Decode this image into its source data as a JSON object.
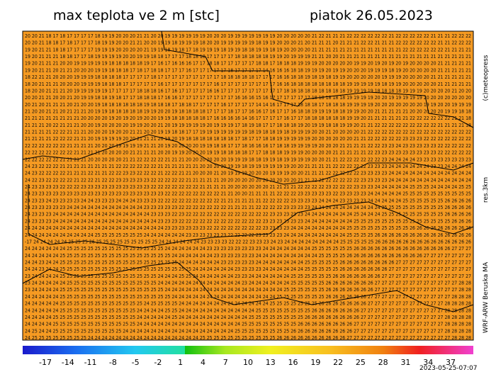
{
  "header": {
    "title": "max teplota ve 2 m [stc]",
    "date": "piatok 26.05.2023"
  },
  "side": {
    "copyright": "(c)meteopress",
    "resolution": "res.3km",
    "model": "WRF-ARW Beruska MA"
  },
  "footer": {
    "timestamp": "2023-05-25-07:07"
  },
  "colorbar": {
    "labels": [
      "-17",
      "-14",
      "-11",
      "-8",
      "-5",
      "-2",
      "1",
      "4",
      "7",
      "10",
      "13",
      "16",
      "19",
      "22",
      "25",
      "28",
      "31",
      "34",
      "37"
    ]
  },
  "grid": {
    "rows": [
      "20 20 21 18 17 18 17 17 17 17 18 19 19 20 20 20 21 21 20 20 19 19 19 19 19 19 20 20 20 19 19 19 19 19 19 19 20 20 20 20 20 21 22 21 21 21 22 22 22 22 22 22 21 22 22 22 22 22 21 21 21 22 22 22",
      "20 20 21 18 18 17 18 17 17 17 18 19 19 20 20 21 21 20 20 19 19 18 19 19 19 18 20 20 19 19 19 19 19 18 19 19 20 20 20 21 20 21 21 21 20 21 21 21 22 22 21 21 21 22 22 22 22 22 22 21 21 22 22 22",
      "19 20 21 21 18 18 17 17 17 17 19 19 19 20 20 20 20 21 19 19 18 19 18 17 18 19 19 19 18 19 19 18 18 19 19 18 19 20 20 20 20 21 21 21 21 21 21 21 21 21 21 21 21 21 22 22 22 22 22 22 21 21 21 21",
      "19 20 21 21 21 18 18 17 17 18 19 19 19 19 20 20 19 19 18 18 17 17 17 18 18 18 17 17 17 17 18 18 18 18 18 19 19 20 19 19 19 21 21 20 20 21 21 21 21 21 21 21 21 21 21 21 21 21 21 21 21 21 21 21",
      "19 20 21 21 21 20 20 19 19 19 19 19 18 18 18 18 18 19 17 16 17 16 16 16 17 17 18 18 17 17 17 17 17 18 18 17 18 18 18 19 19 19 20 20 20 20 20 19 19 20 19 20 19 20 19 20 20 20 20 21 21 21 21 21",
      "19 20 21 21 20 21 21 20 20 20 19 19 18 18 18 17 18 17 18 18 17 17 17 16 17 17 17 17 17 18 17 17 17 17 14 16 16 16 18 18 19 19 19 20 19 19 20 20 20 19 19 19 18 19 20 20 20 20 20 21 21 21 21 21",
      "18 22 21 21 20 20 20 19 19 19 18 18 18 18 17 17 17 17 18 17 17 17 17 17 17 17 17 17 18 18 18 18 18 17 17 17 16 16 18 18 19 18 19 18 19 19 20 20 20 20 20 19 19 19 20 20 20 20 21 21 21 21 21 21",
      "18 20 21 21 21 20 20 20 19 19 19 18 18 18 17 17 17 17 17 16 17 17 17 17 17 17 17 16 17 17 17 17 17 17 17 17 16 16 18 18 18 18 18 18 18 18 19 19 19 19 19 18 19 19 20 20 20 20 20 21 21 21 21 21",
      "18 20 20 21 21 21 20 19 19 19 19 19 17 17 17 17 18 18 18 16 17 16 17 17 17 17 16 16 17 17 17 17 17 17 17 17 17 18 18 18 18 18 18 18 18 18 19 19 19 19 18 18 18 18 19 19 19 20 20 20 20 21 20 20",
      "20 20 21 21 20 20 21 20 19 19 18 18 19 18 17 17 18 18 18 17 16 16 17 17 17 17 17 17 17 17 16 16 16 15 16 17 17 17 17 17 17 18 18 18 18 18 19 19 19 19 20 20 19 19 19 19 19 20 20 20 20 20 20 20",
      "20 21 20 21 21 21 20 21 20 20 19 18 18 18 18 18 18 19 18 18 18 17 18 18 17 17 17 17 16 17 17 17 17 14 14 16 17 17 17 18 18 18 17 18 18 18 19 19 19 19 20 20 20 20 20 20 20 19 19 20 20 19 19 19",
      "21 20 20 21 21 20 21 21 21 20 19 19 18 18 18 18 18 19 19 20 20 19 18 18 18 18 17 17 17 18 17 17 16 16 17 16 17 17 16 18 18 19 19 19 18 18 19 19 20 20 21 21 21 21 21 20 20 20 20 20 19 19 18 18",
      "21 21 21 21 21 21 21 21 20 20 20 20 19 20 19 20 19 20 20 19 19 18 18 18 18 18 17 16 16 16 16 14 16 17 17 17 17 16 17 17 18 18 18 18 18 18 19 19 20 21 21 21 21 21 21 22 22 22 22 22 22 21 21 18",
      "21 21 21 20 22 21 21 21 20 20 19 20 20 20 20 19 19 20 20 21 20 19 19 19 19 19 20 19 19 19 17 18 19 18 17 17 18 18 18 19 20 19 19 18 18 19 19 20 21 21 22 22 22 22 22 22 22 22 22 21 21 21 21 18",
      "21 21 21 21 22 22 21 21 21 20 20 20 19 20 20 21 21 20 20 19 19 18 18 17 17 19 19 19 19 19 19 19 18 19 18 18 19 18 19 19 19 20 20 21 20 20 20 20 21 22 22 22 22 22 22 22 22 22 22 22 22 22 22 22",
      "21 21 21 21 22 22 22 21 21 20 19 19 19 19 20 20 21 21 21 20 19 20 19 18 18 18 18 18 18 18 17 18 17 17 18 18 19 19 19 19 19 20 20 20 20 20 20 21 21 22 22 22 22 22 23 23 23 22 22 22 22 22 22 22",
      "22 22 22 22 22 22 21 21 21 21 20 20 20 19 19 19 19 21 21 20 19 20 20 20 20 19 19 18 18 17 17 18 16 16 16 17 18 18 19 19 19 19 20 20 20 21 21 21 21 22 22 23 23 24 23 23 23 23 23 22 22 22 22 22",
      "22 22 22 22 22 22 22 21 21 21 21 20 20 20 20 21 21 21 21 20 20 19 19 20 20 20 19 19 18 18 18 18 17 17 18 18 18 19 19 19 20 20 20 20 21 21 21 21 21 22 23 23 23 23 23 23 23 23 23 22 22 22 22 22",
      "22 22 22 22 22 21 21 21 21 20 20 20 20 20 21 21 22 22 22 22 21 21 21 20 20 20 20 20 20 19 19 19 18 18 19 19 18 19 19 19 19 20 20 21 21 22 22 22 22 22 22 23 24 24 24 24 23 23 23 23 23 23 23 23",
      "24 23 22 22 22 21 21 21 21 21 21 21 21 22 22 22 22 22 22 21 21 21 21 21 21 20 20 20 20 19 19 18 19 19 19 19 19 19 20 20 21 21 21 21 22 22 22 22 22 23 23 23 24 24 24 24 24 24 23 23 24 24 24 24",
      "24 23 22 22 22 22 21 21 21 22 21 21 22 22 23 23 22 22 22 21 22 22 21 21 20 20 20 21 20 19 19 19 20 20 20 19 19 19 20 20 21 21 21 22 22 22 22 22 23 23 23 23 24 24 24 24 24 24 24 24 24 24 24 24",
      "24 22 23 22 22 22 22 21 22 22 21 22 22 23 23 23 23 23 22 22 22 22 22 21 21 21 21 21 20 20 20 20 20 20 20 20 20 20 20 21 21 22 22 22 22 22 22 22 23 23 23 23 24 24 24 24 24 24 24 24 24 24 24 24",
      "24 23 23 23 23 22 22 22 23 23 23 23 23 23 23 23 23 23 22 22 22 22 22 22 22 21 21 21 21 20 20 20 20 20 20 21 21 21 21 22 22 22 22 23 22 22 22 23 23 23 24 24 24 24 24 25 25 25 24 24 24 24 25 25",
      "24 23 23 23 23 23 23 23 23 23 23 23 23 23 23 23 23 23 23 23 22 22 22 22 22 22 22 22 21 21 20 20 21 21 21 21 22 22 22 23 23 23 23 23 22 23 23 23 23 24 24 24 24 24 25 25 25 25 25 25 25 25 25 25",
      "24 23 23 24 23 23 23 23 24 24 23 23 23 24 24 24 23 23 23 22 22 22 22 22 22 22 22 22 21 21 21 21 21 21 22 22 22 22 23 23 23 23 24 24 24 23 23 23 23 24 24 24 24 24 25 25 25 25 25 25 26 26 26 26",
      "24 23 23 23 23 23 24 24 24 24 24 24 24 24 24 24 24 23 23 23 23 23 22 22 22 22 22 22 22 21 21 21 21 22 22 22 22 23 23 23 23 24 24 24 24 24 24 24 24 24 24 25 25 25 25 25 25 25 25 25 26 26 26 26",
      "24 23 23 23 24 24 24 24 24 24 24 24 24 24 24 24 24 24 23 23 23 22 23 22 22 22 22 22 22 22 22 22 22 22 22 23 23 23 23 23 24 24 24 24 24 24 24 25 24 24 24 25 25 25 25 25 25 25 25 25 26 26 26 26",
      "24 23 23 23 24 24 24 24 24 24 24 24 24 24 24 24 24 24 24 23 23 23 22 22 22 22 22 22 22 22 22 22 22 22 23 23 23 23 23 23 24 24 24 24 24 24 24 25 25 25 25 25 25 25 25 25 25 25 25 25 25 26 26 26",
      "24 24 24 24 24 24 24 24 24 24 24 24 24 24 24 24 24 24 24 24 23 23 23 23 23 23 22 22 22 22 22 22 22 22 23 23 23 23 24 24 24 24 24 24 24 24 25 25 25 25 25 25 25 25 25 26 26 26 26 26 26 26 26 26",
      "24 24 24 24 24 24 24 24 24 24 25 25 25 25 25 25 25 24 24 24 24 24 24 23 23 23 23 23 23 22 22 22 22 23 23 23 23 24 24 24 24 24 24 24 24 24 25 25 25 25 26 26 26 26 26 26 26 26 26 26 26 26 26 26",
      "-17 24 24 24 24 24 25 25 25 26 25 25 25 25 25 25 25 25 25 24 24 24 24 24 24 23 23 23 23 22 22 22 23 23 23 24 23 24 24 24 24 24 24 24 24 25 25 25 25 25 26 26 26 26 26 26 26 26 26 26 26 26 26 26",
      "24 24 24 24 24 24 25 25 25 25 25 25 25 25 25 25 25 25 25 25 24 24 24 24 24 24 23 23 23 23 23 23 23 23 24 24 24 24 24 24 24 25 25 25 25 25 25 26 26 26 26 26 26 26 26 26 26 26 26 26 26 27 27 27",
      "24 24 24 24 24 25 25 25 25 25 25 25 25 25 25 25 25 25 25 25 25 24 24 24 24 24 24 23 23 23 23 23 23 24 24 24 24 24 24 24 24 24 25 25 25 25 26 26 26 26 26 26 26 26 26 26 26 27 27 27 27 27 27 27",
      "24 24 23 24 24 25 25 25 25 25 25 25 25 25 25 25 25 25 25 25 25 25 24 24 24 24 24 24 23 23 23 23 23 24 24 24 24 24 24 24 25 25 25 25 25 26 26 26 26 26 26 26 26 27 27 27 27 27 27 27 27 27 27 27",
      "24 24 23 24 24 25 25 25 25 25 25 25 25 25 25 25 25 25 25 25 25 25 25 25 24 24 24 24 24 24 23 23 23 23 24 24 24 24 24 24 25 25 25 25 25 26 26 26 26 26 26 26 27 27 27 27 27 27 27 27 27 27 27 27",
      "23 24 24 24 24 25 25 25 25 25 25 25 25 25 25 25 25 25 25 24 24 24 25 25 24 24 24 24 24 24 23 23 24 24 24 24 24 24 25 25 25 25 25 25 26 26 26 26 26 26 26 27 27 27 27 27 27 27 27 27 27 27 27 27",
      "23 24 24 24 24 24 25 25 25 25 25 25 25 25 25 25 25 25 25 24 24 24 24 24 24 24 24 24 24 24 24 23 24 24 24 24 24 24 25 25 25 25 25 26 26 26 26 26 26 26 27 27 27 27 27 27 27 27 27 27 27 27 28 28",
      "23 24 24 24 24 25 25 25 25 25 25 25 25 25 25 25 25 25 25 25 24 24 24 24 24 24 24 24 24 24 24 24 24 24 24 24 24 25 25 25 25 25 25 26 26 26 26 26 26 26 27 27 27 27 27 27 27 27 27 27 27 27 28 28",
      "24 24 24 24 24 25 25 25 25 25 25 25 25 25 25 25 25 25 25 25 25 24 24 24 24 24 24 24 24 24 24 24 24 24 24 24 25 25 25 25 25 25 25 26 26 26 26 26 26 27 27 27 27 27 27 27 27 27 27 27 27 28 28 28",
      "24 24 24 24 24 25 25 25 25 25 25 25 25 25 25 25 25 24 25 25 25 25 24 24 24 24 24 24 24 24 24 24 24 24 24 25 25 25 25 25 25 25 26 26 26 26 26 26 26 27 27 27 27 27 27 27 27 27 27 27 28 28 28 28",
      "24 24 24 24 24 25 25 25 25 25 25 25 25 25 25 25 24 24 24 24 25 25 24 24 24 24 24 24 24 24 24 24 24 25 25 25 25 25 25 25 25 26 26 26 26 26 26 26 27 27 27 27 27 27 27 27 27 27 27 27 28 28 28 28",
      "24 24 24 24 25 25 25 25 25 25 25 25 25 25 25 25 24 24 24 24 24 25 24 24 24 24 24 24 24 24 24 24 25 25 25 25 25 25 25 25 26 26 26 26 26 26 26 26 27 27 27 27 27 27 27 27 27 27 27 27 28 28 28 28",
      "24 24 24 24 25 25 25 25 25 25 25 25 25 25 25 25 24 24 24 24 24 24 24 24 24 24 24 24 24 24 24 25 25 25 25 25 25 25 25 26 26 26 26 26 26 26 26 27 27 27 27 27 27 27 27 27 27 27 27 27 28 28 28 28",
      "24 25 24 24 25 25 25 25 25 25 25 25 25 25 24 24 24 24 24 24 24 24 24 24 24 24 24 24 24 24 25 25 25 25 25 25 25 25 26 26 26 26 26 26 26 26 26 27 27 27 27 27 27 27 27 27 27 27 27 27 28 28 28 28",
      "24 25 25 25 25 25 25 25 25 24 24 24 24 24 24 24 24 24 24 24 24 24 24 24 24 25 25 25 25 25 25 25 25 25 25 25 26 26 26 26 26 26 26 26 26 26 27 27 27 27 27 27 27 27 27 27 27 27 27 27 27 28 28 28"
    ]
  }
}
